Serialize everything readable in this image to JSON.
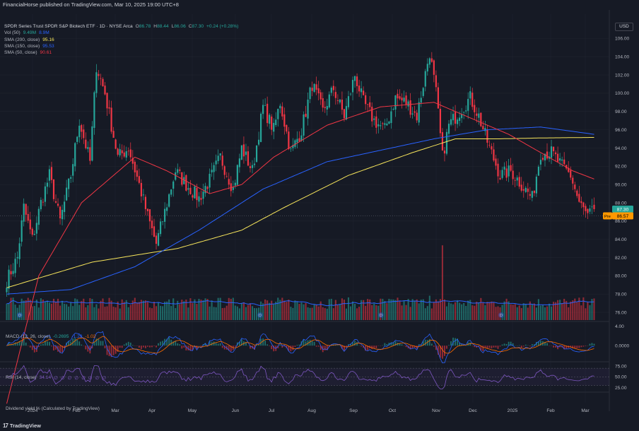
{
  "header": {
    "published": "FinancialHorse published on TradingView.com, Mar 10, 2025 19:00 UTC+8"
  },
  "legend": {
    "title": "SPDR Series Trust SPDR S&P Biotech ETF · 1D · NYSE Arca",
    "ohlc": [
      {
        "label": "O",
        "value": "86.78"
      },
      {
        "label": "H",
        "value": "88.44"
      },
      {
        "label": "L",
        "value": "86.06"
      },
      {
        "label": "C",
        "value": "87.30"
      }
    ],
    "change": "+0.24 (+0.28%)",
    "indicators": [
      {
        "label": "Vol (50)",
        "values": [
          "9.49M",
          "8.9M"
        ],
        "colors": [
          "#26a69a",
          "#2962ff"
        ]
      },
      {
        "label": "SMA (200, close)",
        "values": [
          "95.16"
        ],
        "colors": [
          "#f7e55b"
        ]
      },
      {
        "label": "SMA (150, close)",
        "values": [
          "95.53"
        ],
        "colors": [
          "#2962ff"
        ]
      },
      {
        "label": "SMA (50, close)",
        "values": [
          "90.61"
        ],
        "colors": [
          "#f23645"
        ]
      }
    ]
  },
  "currency": "USD",
  "macd": {
    "label": "MACD (12, 26, close)",
    "values": [
      "-0.2695",
      "-1.29",
      "-1.02"
    ],
    "colors": [
      "#26a69a",
      "#2962ff",
      "#ff6d00"
    ]
  },
  "rsi": {
    "label": "RSI (14, close)",
    "values": [
      "34.14",
      "∅",
      "∅",
      "∅",
      "∅",
      "∅",
      "∅",
      "∅",
      "∅"
    ],
    "color": "#7e57c2"
  },
  "dividend": {
    "label": "Dividend yield % (Calculated by TradingView)",
    "marker": "D"
  },
  "footer": {
    "brand": "TradingView",
    "logo_icon": "tradingview-logo-icon"
  },
  "colors": {
    "bg": "#161a25",
    "up": "#26a69a",
    "down": "#f23645",
    "sma200": "#f7e55b",
    "sma150": "#2962ff",
    "sma50": "#f23645",
    "rsi": "#7e57c2",
    "macd": "#2962ff",
    "signal": "#ff6d00"
  },
  "chart_data": {
    "type": "candlestick",
    "price_axis": {
      "ticks": [
        76,
        78,
        80,
        82,
        84,
        86,
        88,
        90,
        92,
        94,
        96,
        98,
        100,
        102,
        104,
        106
      ],
      "range": [
        75,
        107.5
      ]
    },
    "price_labels": [
      {
        "text": "87.30",
        "value": 87.3,
        "style": "last",
        "color": "#26a69a"
      },
      {
        "text": "Pre",
        "value": 86.57,
        "style": "pre",
        "color": "#ff9800"
      },
      {
        "text": "86.57",
        "value": 86.57,
        "style": "pre-value",
        "color": "#ff9800"
      }
    ],
    "x_axis": {
      "labels": [
        "2024",
        "Feb",
        "Mar",
        "Apr",
        "May",
        "Jun",
        "Jul",
        "Aug",
        "Sep",
        "Oct",
        "Nov",
        "Dec",
        "2025",
        "Feb",
        "Mar"
      ]
    },
    "price_anchors": [
      [
        0,
        79.5
      ],
      [
        5,
        82.0
      ],
      [
        8,
        87.5
      ],
      [
        12,
        84.0
      ],
      [
        16,
        88.0
      ],
      [
        20,
        91.0
      ],
      [
        25,
        86.0
      ],
      [
        30,
        91.0
      ],
      [
        34,
        97.0
      ],
      [
        39,
        92.5
      ],
      [
        42,
        103.0
      ],
      [
        46,
        100.0
      ],
      [
        52,
        93.0
      ],
      [
        57,
        94.0
      ],
      [
        62,
        90.0
      ],
      [
        66,
        86.5
      ],
      [
        70,
        83.5
      ],
      [
        74,
        87.0
      ],
      [
        79,
        91.5
      ],
      [
        84,
        90.0
      ],
      [
        90,
        88.5
      ],
      [
        95,
        90.5
      ],
      [
        100,
        93.0
      ],
      [
        106,
        89.5
      ],
      [
        110,
        94.0
      ],
      [
        115,
        91.5
      ],
      [
        120,
        98.5
      ],
      [
        125,
        96.0
      ],
      [
        128,
        99.0
      ],
      [
        133,
        93.5
      ],
      [
        138,
        96.0
      ],
      [
        143,
        101.0
      ],
      [
        148,
        98.0
      ],
      [
        153,
        100.5
      ],
      [
        158,
        97.5
      ],
      [
        163,
        102.0
      ],
      [
        167,
        99.0
      ],
      [
        172,
        97.0
      ],
      [
        177,
        96.0
      ],
      [
        182,
        99.5
      ],
      [
        187,
        99.0
      ],
      [
        192,
        97.5
      ],
      [
        198,
        104.5
      ],
      [
        201,
        100.0
      ],
      [
        204,
        93.0
      ],
      [
        207,
        96.5
      ],
      [
        212,
        98.0
      ],
      [
        217,
        99.5
      ],
      [
        221,
        97.5
      ],
      [
        226,
        94.0
      ],
      [
        231,
        91.0
      ],
      [
        236,
        91.5
      ],
      [
        241,
        90.0
      ],
      [
        246,
        88.5
      ],
      [
        250,
        93.5
      ],
      [
        255,
        93.5
      ],
      [
        260,
        92.0
      ],
      [
        264,
        91.0
      ],
      [
        268,
        88.0
      ],
      [
        272,
        86.5
      ],
      [
        275,
        87.3
      ]
    ],
    "sma50_anchors": [
      [
        0,
        66.0
      ],
      [
        15,
        80.0
      ],
      [
        35,
        88.0
      ],
      [
        60,
        93.0
      ],
      [
        75,
        91.5
      ],
      [
        95,
        89.0
      ],
      [
        110,
        90.0
      ],
      [
        125,
        93.0
      ],
      [
        150,
        96.5
      ],
      [
        175,
        98.5
      ],
      [
        200,
        99.0
      ],
      [
        215,
        97.5
      ],
      [
        235,
        95.5
      ],
      [
        250,
        93.5
      ],
      [
        265,
        91.5
      ],
      [
        275,
        90.6
      ]
    ],
    "sma150_anchors": [
      [
        0,
        78.0
      ],
      [
        30,
        78.5
      ],
      [
        60,
        81.0
      ],
      [
        90,
        85.0
      ],
      [
        120,
        89.5
      ],
      [
        150,
        92.5
      ],
      [
        180,
        94.0
      ],
      [
        200,
        95.0
      ],
      [
        225,
        96.0
      ],
      [
        250,
        96.3
      ],
      [
        275,
        95.5
      ]
    ],
    "sma200_anchors": [
      [
        0,
        78.7
      ],
      [
        40,
        81.5
      ],
      [
        80,
        83.0
      ],
      [
        110,
        85.0
      ],
      [
        130,
        87.5
      ],
      [
        160,
        91.0
      ],
      [
        190,
        93.5
      ],
      [
        210,
        95.0
      ],
      [
        230,
        95.0
      ],
      [
        250,
        95.1
      ],
      [
        275,
        95.16
      ]
    ],
    "volume": {
      "ma_color": "#2962ff",
      "spikes": [
        [
          40,
          0.65
        ],
        [
          48,
          0.55
        ],
        [
          130,
          0.45
        ],
        [
          198,
          0.75
        ],
        [
          204,
          1.0
        ],
        [
          210,
          0.55
        ],
        [
          240,
          0.45
        ],
        [
          260,
          0.45
        ],
        [
          272,
          0.55
        ]
      ]
    },
    "macd_axis": {
      "ticks": [
        "4.00",
        "0.0000"
      ],
      "range": [
        -3,
        4.5
      ]
    },
    "rsi_axis": {
      "ticks": [
        "75.00",
        "50.00",
        "25.00"
      ],
      "range": [
        18,
        80
      ],
      "band": [
        30,
        70
      ]
    }
  }
}
